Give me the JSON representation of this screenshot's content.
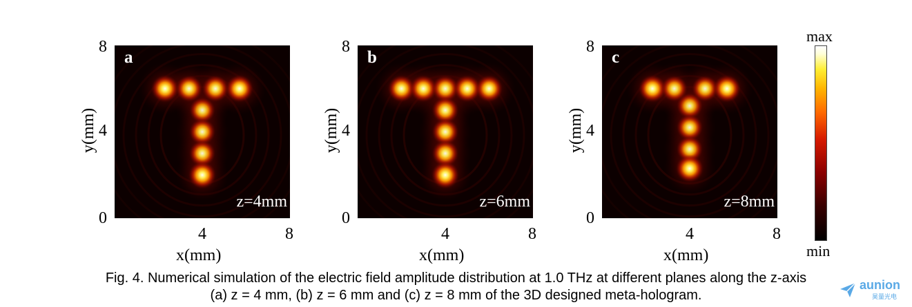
{
  "chart_data": [
    {
      "type": "heatmap",
      "panel_label": "a",
      "annotation": "z=4mm",
      "xlabel": "x(mm)",
      "ylabel": "y(mm)",
      "xlim": [
        0,
        8
      ],
      "ylim": [
        0,
        8
      ],
      "xticks": [
        "4",
        "8"
      ],
      "yticks": [
        "0",
        "4",
        "8"
      ],
      "hotspots": [
        {
          "x": 2.3,
          "y": 6.0,
          "v": 1.0
        },
        {
          "x": 3.4,
          "y": 6.0,
          "v": 0.9
        },
        {
          "x": 4.6,
          "y": 6.0,
          "v": 0.9
        },
        {
          "x": 5.7,
          "y": 6.0,
          "v": 1.0
        },
        {
          "x": 4.0,
          "y": 5.0,
          "v": 0.8
        },
        {
          "x": 4.0,
          "y": 4.0,
          "v": 0.85
        },
        {
          "x": 4.0,
          "y": 3.0,
          "v": 0.85
        },
        {
          "x": 4.0,
          "y": 2.0,
          "v": 1.0
        }
      ]
    },
    {
      "type": "heatmap",
      "panel_label": "b",
      "annotation": "z=6mm",
      "xlabel": "x(mm)",
      "ylabel": "y(mm)",
      "xlim": [
        0,
        8
      ],
      "ylim": [
        0,
        8
      ],
      "xticks": [
        "4",
        "8"
      ],
      "yticks": [
        "0",
        "4",
        "8"
      ],
      "hotspots": [
        {
          "x": 2.0,
          "y": 6.0,
          "v": 0.95
        },
        {
          "x": 3.0,
          "y": 6.0,
          "v": 0.95
        },
        {
          "x": 4.0,
          "y": 6.0,
          "v": 0.9
        },
        {
          "x": 5.0,
          "y": 6.0,
          "v": 0.95
        },
        {
          "x": 6.0,
          "y": 6.0,
          "v": 0.95
        },
        {
          "x": 4.0,
          "y": 5.0,
          "v": 0.9
        },
        {
          "x": 4.0,
          "y": 4.0,
          "v": 0.9
        },
        {
          "x": 4.0,
          "y": 3.0,
          "v": 0.9
        },
        {
          "x": 4.0,
          "y": 2.0,
          "v": 1.0
        }
      ]
    },
    {
      "type": "heatmap",
      "panel_label": "c",
      "annotation": "z=8mm",
      "xlabel": "x(mm)",
      "ylabel": "y(mm)",
      "xlim": [
        0,
        8
      ],
      "ylim": [
        0,
        8
      ],
      "xticks": [
        "4",
        "8"
      ],
      "yticks": [
        "0",
        "4",
        "8"
      ],
      "hotspots": [
        {
          "x": 2.3,
          "y": 6.0,
          "v": 1.0
        },
        {
          "x": 3.3,
          "y": 6.0,
          "v": 0.85
        },
        {
          "x": 4.7,
          "y": 6.0,
          "v": 0.85
        },
        {
          "x": 5.7,
          "y": 6.0,
          "v": 1.0
        },
        {
          "x": 4.0,
          "y": 5.2,
          "v": 0.8
        },
        {
          "x": 4.0,
          "y": 4.2,
          "v": 0.85
        },
        {
          "x": 4.0,
          "y": 3.2,
          "v": 0.85
        },
        {
          "x": 4.0,
          "y": 2.3,
          "v": 1.0
        }
      ]
    }
  ],
  "colorbar": {
    "max_label": "max",
    "min_label": "min",
    "colors": [
      "#000000",
      "#8b0000",
      "#ff3a00",
      "#ffb400",
      "#ffee33",
      "#ffffff"
    ]
  },
  "caption": {
    "line1": "Fig. 4. Numerical simulation of the electric field amplitude distribution at 1.0 THz at different planes along the z-axis",
    "line2": "(a) z = 4 mm, (b) z = 6 mm and (c) z = 8 mm of the 3D designed meta-hologram."
  },
  "logo": {
    "name": "aunion",
    "subtitle": "昊量光电",
    "color": "#5aa9e6"
  }
}
